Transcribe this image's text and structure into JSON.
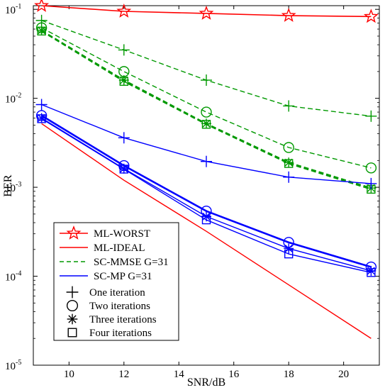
{
  "chart_data": {
    "type": "line",
    "xlabel": "SNR/dB",
    "ylabel": "BER",
    "yscale": "log",
    "xlim": [
      8.7,
      21.3
    ],
    "ylim": [
      1e-05,
      0.11
    ],
    "grid": false,
    "legend_position": "bottom-left",
    "x_ticks": [
      "10",
      "12",
      "14",
      "16",
      "18",
      "20"
    ],
    "y_ticks": [
      {
        "base": "10",
        "exp": "-5",
        "value": 1e-05
      },
      {
        "base": "10",
        "exp": "-4",
        "value": 0.0001
      },
      {
        "base": "10",
        "exp": "-3",
        "value": 0.001
      },
      {
        "base": "10",
        "exp": "-2",
        "value": 0.01
      },
      {
        "base": "10",
        "exp": "-1",
        "value": 0.1
      }
    ],
    "colors": {
      "red": "#ff0000",
      "green": "#009900",
      "blue": "#0000ff"
    },
    "series": [
      {
        "name": "ML-WORST",
        "color": "#ff0000",
        "style": "solid",
        "width": 1.6,
        "marker": "star",
        "x": [
          9,
          12,
          15,
          18,
          21
        ],
        "y": [
          0.11,
          0.095,
          0.09,
          0.085,
          0.083
        ]
      },
      {
        "name": "ML-IDEAL",
        "color": "#ff0000",
        "style": "solid",
        "width": 1.4,
        "marker": "none",
        "x": [
          9,
          12,
          15,
          18,
          21
        ],
        "y": [
          0.0052,
          0.0012,
          0.00032,
          8e-05,
          2e-05
        ]
      },
      {
        "color": "#009900",
        "style": "dashed",
        "width": 1.4,
        "marker": "plus",
        "x": [
          9,
          12,
          15,
          18,
          21
        ],
        "y": [
          0.075,
          0.035,
          0.016,
          0.0082,
          0.0063
        ]
      },
      {
        "color": "#009900",
        "style": "dashed",
        "width": 1.4,
        "marker": "circle",
        "x": [
          9,
          12,
          15,
          18,
          21
        ],
        "y": [
          0.062,
          0.02,
          0.007,
          0.0028,
          0.00165
        ]
      },
      {
        "color": "#009900",
        "style": "dashed",
        "width": 2.0,
        "marker": "asterisk",
        "x": [
          9,
          12,
          15,
          18,
          21
        ],
        "y": [
          0.058,
          0.016,
          0.0052,
          0.0019,
          0.00098
        ]
      },
      {
        "color": "#009900",
        "style": "dashed",
        "width": 2.0,
        "marker": "square",
        "x": [
          9,
          12,
          15,
          18,
          21
        ],
        "y": [
          0.057,
          0.0155,
          0.0051,
          0.00185,
          0.00095
        ]
      },
      {
        "color": "#0000ff",
        "style": "solid",
        "width": 1.4,
        "marker": "plus",
        "x": [
          9,
          12,
          15,
          18,
          21
        ],
        "y": [
          0.0085,
          0.0036,
          0.00195,
          0.0013,
          0.0011
        ]
      },
      {
        "color": "#0000ff",
        "style": "solid",
        "width": 2.6,
        "marker": "circle",
        "x": [
          9,
          12,
          15,
          18,
          21
        ],
        "y": [
          0.0064,
          0.00175,
          0.00054,
          0.00024,
          0.000127
        ]
      },
      {
        "color": "#0000ff",
        "style": "solid",
        "width": 1.4,
        "marker": "asterisk",
        "x": [
          9,
          12,
          15,
          18,
          21
        ],
        "y": [
          0.006,
          0.00162,
          0.00047,
          0.000205,
          0.000115
        ]
      },
      {
        "color": "#0000ff",
        "style": "solid",
        "width": 1.4,
        "marker": "square",
        "x": [
          9,
          12,
          15,
          18,
          21
        ],
        "y": [
          0.0059,
          0.0016,
          0.00043,
          0.000178,
          0.00011
        ]
      }
    ],
    "legend": [
      {
        "label": "ML-WORST",
        "color": "#ff0000",
        "style": "solid",
        "marker": "star"
      },
      {
        "label": "ML-IDEAL",
        "color": "#ff0000",
        "style": "solid",
        "marker": "none"
      },
      {
        "label": "SC-MMSE G=31",
        "color": "#009900",
        "style": "dashed",
        "marker": "none"
      },
      {
        "label": "SC-MP G=31",
        "color": "#0000ff",
        "style": "solid",
        "marker": "none"
      },
      {
        "label": "One iteration",
        "color": "#000000",
        "marker": "plus"
      },
      {
        "label": "Two iterations",
        "color": "#000000",
        "marker": "circle"
      },
      {
        "label": "Three iterations",
        "color": "#000000",
        "marker": "asterisk"
      },
      {
        "label": "Four iterations",
        "color": "#000000",
        "marker": "square"
      }
    ]
  }
}
